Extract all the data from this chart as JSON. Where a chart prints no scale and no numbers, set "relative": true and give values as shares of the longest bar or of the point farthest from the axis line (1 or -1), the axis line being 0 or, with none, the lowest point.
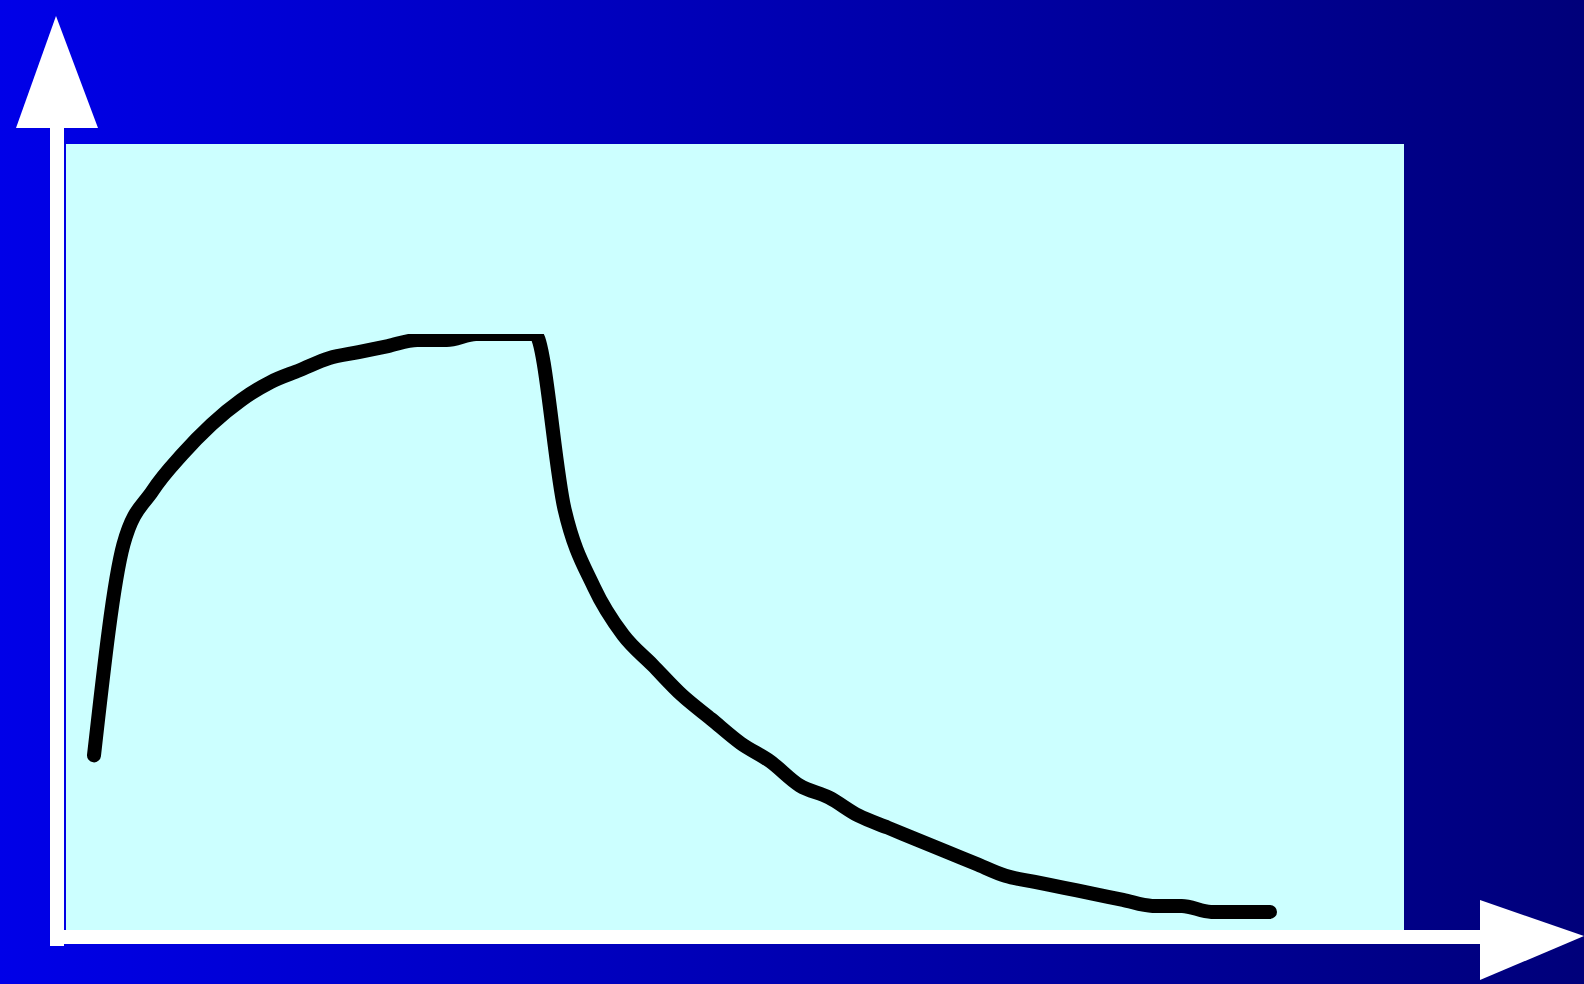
{
  "chart_data": {
    "type": "line",
    "relative": true,
    "categories": [
      null,
      null,
      null,
      null,
      null,
      null,
      null,
      null,
      null,
      null,
      null,
      null,
      null,
      null,
      null,
      null,
      null,
      null,
      null,
      null,
      null,
      null,
      null,
      null,
      null,
      null,
      null,
      null,
      null,
      null,
      null,
      null,
      null,
      null,
      null,
      null,
      null,
      null,
      null,
      null,
      null
    ],
    "series": [
      {
        "color": "#000000",
        "values": [
          0.3,
          0.65,
          0.74,
          0.8,
          0.85,
          0.89,
          0.92,
          0.94,
          0.96,
          0.97,
          0.98,
          0.99,
          0.99,
          1.0,
          1.0,
          1.0,
          0.71,
          0.58,
          0.5,
          0.45,
          0.4,
          0.36,
          0.32,
          0.29,
          0.25,
          0.23,
          0.2,
          0.18,
          0.16,
          0.14,
          0.12,
          0.1,
          0.09,
          0.08,
          0.07,
          0.06,
          0.05,
          0.05,
          0.04,
          0.04,
          0.04
        ]
      }
    ]
  }
}
